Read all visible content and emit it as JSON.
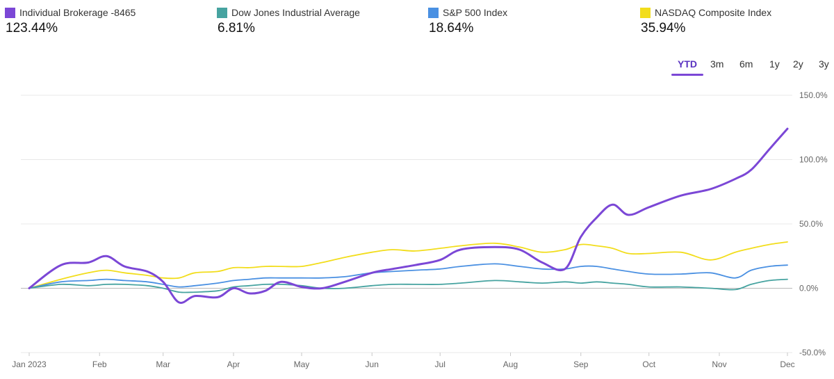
{
  "legend": [
    {
      "name": "Individual Brokerage -8465",
      "value": "123.44%",
      "color": "#7b47d6"
    },
    {
      "name": "Dow Jones Industrial Average",
      "value": "6.81%",
      "color": "#46a3a0"
    },
    {
      "name": "S&P 500 Index",
      "value": "18.64%",
      "color": "#4a90e2"
    },
    {
      "name": "NASDAQ Composite Index",
      "value": "35.94%",
      "color": "#f2dd1b"
    }
  ],
  "ranges": {
    "ytd": "YTD",
    "m3": "3m",
    "m6": "6m",
    "y1": "1y",
    "y2": "2y",
    "y3": "3y",
    "active": "YTD"
  },
  "chart_data": {
    "type": "line",
    "title": "",
    "xlabel": "",
    "ylabel": "",
    "ylim": [
      -50,
      150
    ],
    "yticks": [
      "150.0%",
      "100.0%",
      "50.0%",
      "0.0%",
      "-50.0%"
    ],
    "xticks": [
      "Jan 2023",
      "Feb",
      "Mar",
      "Apr",
      "May",
      "Jun",
      "Jul",
      "Aug",
      "Sep",
      "Oct",
      "Nov",
      "Dec"
    ],
    "grid": true,
    "x": [
      "2023-01-01",
      "2023-01-15",
      "2023-01-27",
      "2023-02-04",
      "2023-02-12",
      "2023-02-22",
      "2023-03-01",
      "2023-03-08",
      "2023-03-15",
      "2023-03-25",
      "2023-04-01",
      "2023-04-08",
      "2023-04-15",
      "2023-04-22",
      "2023-05-01",
      "2023-05-10",
      "2023-05-20",
      "2023-06-01",
      "2023-06-10",
      "2023-06-20",
      "2023-07-01",
      "2023-07-10",
      "2023-07-25",
      "2023-08-05",
      "2023-08-15",
      "2023-08-25",
      "2023-09-01",
      "2023-09-08",
      "2023-09-15",
      "2023-09-22",
      "2023-10-01",
      "2023-10-15",
      "2023-10-28",
      "2023-11-08",
      "2023-11-15",
      "2023-11-23",
      "2023-12-01"
    ],
    "series": [
      {
        "name": "Individual Brokerage -8465",
        "color": "#7b47d6",
        "values": [
          0,
          18,
          20,
          25,
          17,
          13,
          5,
          -11,
          -6,
          -7,
          0,
          -4,
          -2,
          5,
          1,
          0,
          5,
          12,
          15,
          18,
          22,
          30,
          32,
          30,
          20,
          15,
          40,
          55,
          65,
          57,
          63,
          72,
          77,
          85,
          92,
          108,
          124
        ]
      },
      {
        "name": "Dow Jones Industrial Average",
        "color": "#46a3a0",
        "values": [
          0,
          3,
          2,
          3,
          3,
          2,
          0,
          -3,
          -3,
          -2,
          1,
          2,
          3,
          3,
          2,
          0,
          0,
          2,
          3,
          3,
          3,
          4,
          6,
          5,
          4,
          5,
          4,
          5,
          4,
          3,
          1,
          1,
          0,
          -1,
          3,
          6,
          7
        ]
      },
      {
        "name": "S&P 500 Index",
        "color": "#4a90e2",
        "values": [
          0,
          5,
          6,
          7,
          6,
          5,
          3,
          1,
          2,
          4,
          6,
          7,
          8,
          8,
          8,
          8,
          9,
          12,
          13,
          14,
          15,
          17,
          19,
          17,
          15,
          15,
          17,
          17,
          15,
          13,
          11,
          11,
          12,
          8,
          14,
          17,
          18
        ]
      },
      {
        "name": "NASDAQ Composite Index",
        "color": "#f2dd1b",
        "values": [
          0,
          7,
          12,
          14,
          12,
          10,
          8,
          8,
          12,
          13,
          16,
          16,
          17,
          17,
          17,
          20,
          24,
          28,
          30,
          29,
          31,
          33,
          35,
          32,
          28,
          30,
          34,
          33,
          31,
          27,
          27,
          28,
          22,
          28,
          31,
          34,
          36
        ]
      }
    ]
  }
}
